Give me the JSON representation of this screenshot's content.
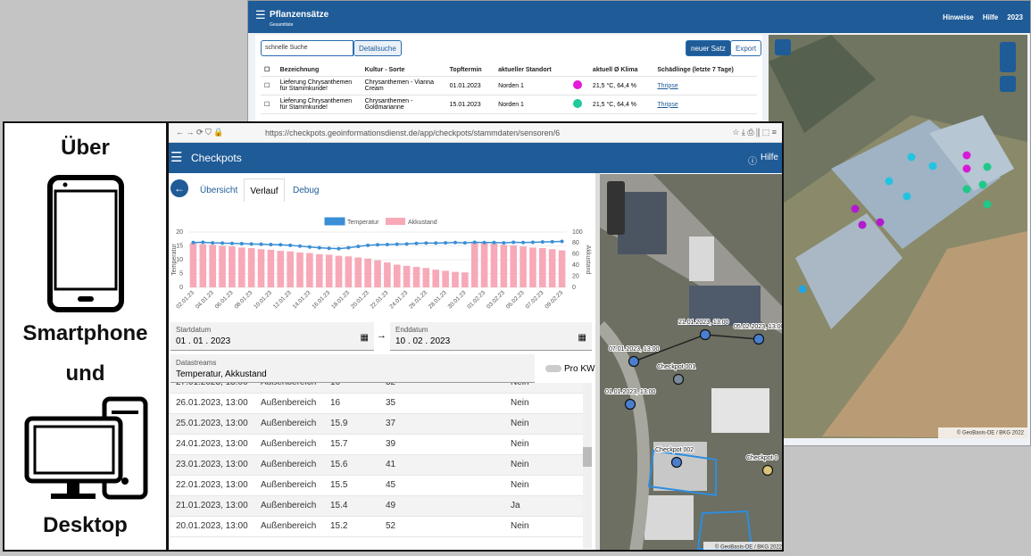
{
  "back_window": {
    "header": {
      "title": "Pflanzensätze",
      "subtitle": "Gesamtliste",
      "links": [
        "Hinweise",
        "Hilfe",
        "2023"
      ]
    },
    "search_placeholder": "schnelle Suche",
    "buttons": [
      "Detailsuche",
      "neuer Satz",
      "Export"
    ],
    "table": {
      "columns": [
        "Bezeichnung",
        "Kultur - Sorte",
        "Topftermin",
        "aktueller Standort",
        "aktuell Ø Klima",
        "Schädlinge (letzte 7 Tage)"
      ],
      "rows": [
        [
          "Lieferung Chrysanthemen für Stammkunde!",
          "Chrysanthemen - Vianna Cream",
          "01.01.2023",
          "Norden 1",
          "21,5 °C,  64,4 %",
          "Thripse"
        ],
        [
          "Lieferung Chrysanthemen für Stammkunde!",
          "Chrysanthemen - Goldmarianne",
          "15.01.2023",
          "Norden 1",
          "21,5 °C,  64,4 %",
          "Thripse"
        ]
      ],
      "row_colors": [
        "#e619d9",
        "#1ec99a"
      ]
    },
    "map_attribution": "© GeoBasis-DE / BKG 2022"
  },
  "side_panel": {
    "texts": [
      "Über",
      "Smartphone",
      "und",
      "Desktop"
    ]
  },
  "front_window": {
    "url": "https://checkpots.geoinformationsdienst.de/app/checkpots/stammdaten/sensoren/6",
    "header": {
      "title": "Checkpots",
      "help": "Hilfe"
    },
    "tabs": [
      "Übersicht",
      "Verlauf",
      "Debug"
    ],
    "chart": {
      "type": "bar_line",
      "categories": [
        "02.01.23",
        null,
        "04.01.23",
        null,
        "06.01.23",
        null,
        "08.01.23",
        null,
        "10.01.23",
        null,
        "12.01.23",
        null,
        "14.01.23",
        null,
        "16.01.23",
        null,
        "18.01.23",
        null,
        "20.01.23",
        null,
        "22.01.23",
        null,
        "24.01.23",
        null,
        "26.01.23",
        null,
        "28.01.23",
        null,
        "30.01.23",
        null,
        "01.02.23",
        null,
        "03.02.23",
        null,
        "05.02.23",
        null,
        "07.02.23",
        null,
        "09.02.23"
      ],
      "series": [
        {
          "name": "Temperatur",
          "color": "#3a8fd6",
          "type": "line",
          "values": [
            16.2,
            16.3,
            16.1,
            16.0,
            15.9,
            15.8,
            15.7,
            15.6,
            15.5,
            15.4,
            15.2,
            14.9,
            14.6,
            14.3,
            14.1,
            14.0,
            14.3,
            14.8,
            15.2,
            15.4,
            15.5,
            15.6,
            15.7,
            15.9,
            16,
            16,
            16.1,
            16.2,
            16.1,
            16.3,
            16.2,
            16.2,
            16.1,
            16.3,
            16.2,
            16.3,
            16.4,
            16.5,
            16.6
          ]
        },
        {
          "name": "Akkustand",
          "color": "#f7a9b8",
          "type": "bar",
          "axis": "y2",
          "values": [
            80,
            78,
            77,
            75,
            74,
            72,
            71,
            69,
            68,
            66,
            65,
            63,
            62,
            60,
            59,
            57,
            56,
            54,
            52,
            49,
            45,
            41,
            39,
            37,
            35,
            32,
            30,
            28,
            27,
            82,
            80,
            79,
            77,
            76,
            74,
            72,
            71,
            69,
            67
          ]
        }
      ],
      "ylabel": "Temperatur",
      "y2label": "Akkustand",
      "ylim": [
        0,
        20
      ],
      "yticks": [
        0,
        5,
        10,
        15,
        20
      ],
      "y2lim": [
        0,
        100
      ],
      "y2ticks": [
        0,
        20,
        40,
        60,
        80,
        100
      ],
      "grid": true
    },
    "start": {
      "label": "Startdatum",
      "value": "01 . 01 . 2023"
    },
    "end": {
      "label": "Enddatum",
      "value": "10 . 02 . 2023"
    },
    "datastreams": {
      "label": "Datastreams",
      "value": "Temperatur, Akkustand"
    },
    "toggle": "Pro KW",
    "table": {
      "rows": [
        [
          "27.01.2023, 13:00",
          "Außenbereich",
          16,
          32,
          "Nein"
        ],
        [
          "26.01.2023, 13:00",
          "Außenbereich",
          16,
          35,
          "Nein"
        ],
        [
          "25.01.2023, 13:00",
          "Außenbereich",
          15.9,
          37,
          "Nein"
        ],
        [
          "24.01.2023, 13:00",
          "Außenbereich",
          15.7,
          39,
          "Nein"
        ],
        [
          "23.01.2023, 13:00",
          "Außenbereich",
          15.6,
          41,
          "Nein"
        ],
        [
          "22.01.2023, 13:00",
          "Außenbereich",
          15.5,
          45,
          "Nein"
        ],
        [
          "21.01.2023, 13:00",
          "Außenbereich",
          15.4,
          49,
          "Ja"
        ],
        [
          "20.01.2023, 13:00",
          "Außenbereich",
          15.2,
          52,
          "Nein"
        ]
      ]
    },
    "map": {
      "labels": [
        "21.01.2023, 13:00",
        "05.02.2023, 13:00",
        "07.01.2023, 13:00",
        "Checkpot 001",
        "01.01.2023, 13:00",
        "Checkpot 002",
        "Checkpot 0"
      ],
      "attribution": "© GeoBasis-DE / BKG 2022"
    }
  }
}
